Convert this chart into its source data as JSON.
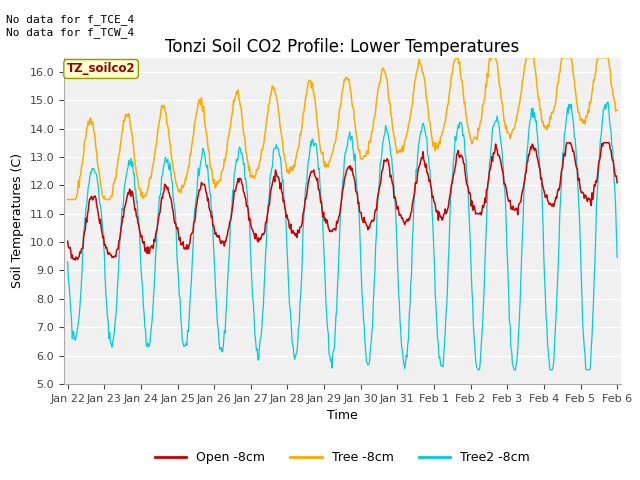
{
  "title": "Tonzi Soil CO2 Profile: Lower Temperatures",
  "xlabel": "Time",
  "ylabel": "Soil Temperatures (C)",
  "ylim": [
    5.0,
    16.5
  ],
  "yticks": [
    5.0,
    6.0,
    7.0,
    8.0,
    9.0,
    10.0,
    11.0,
    12.0,
    13.0,
    14.0,
    15.0,
    16.0
  ],
  "annotation_text": "No data for f_TCE_4\nNo data for f_TCW_4",
  "box_label": "TZ_soilco2",
  "open_color": "#cc0000",
  "tree_color": "#ffaa00",
  "tree2_color": "#00ccdd",
  "fig_bg": "#ffffff",
  "plot_bg": "#f0f0f0",
  "grid_color": "#ffffff",
  "tick_labels": [
    "Jan 22",
    "Jan 23",
    "Jan 24",
    "Jan 25",
    "Jan 26",
    "Jan 27",
    "Jan 28",
    "Jan 29",
    "Jan 30",
    "Jan 31",
    "Feb 1",
    "Feb 2",
    "Feb 3",
    "Feb 4",
    "Feb 5",
    "Feb 6"
  ],
  "title_fontsize": 12,
  "label_fontsize": 9,
  "tick_fontsize": 8,
  "annot_fontsize": 8
}
